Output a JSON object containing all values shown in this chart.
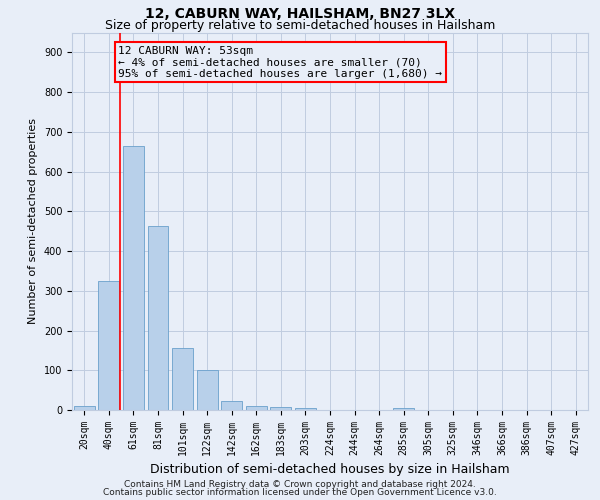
{
  "title1": "12, CABURN WAY, HAILSHAM, BN27 3LX",
  "title2": "Size of property relative to semi-detached houses in Hailsham",
  "xlabel": "Distribution of semi-detached houses by size in Hailsham",
  "ylabel": "Number of semi-detached properties",
  "bar_labels": [
    "20sqm",
    "40sqm",
    "61sqm",
    "81sqm",
    "101sqm",
    "122sqm",
    "142sqm",
    "162sqm",
    "183sqm",
    "203sqm",
    "224sqm",
    "244sqm",
    "264sqm",
    "285sqm",
    "305sqm",
    "325sqm",
    "346sqm",
    "366sqm",
    "386sqm",
    "407sqm",
    "427sqm"
  ],
  "bar_values": [
    10,
    325,
    665,
    462,
    155,
    100,
    22,
    10,
    7,
    4,
    0,
    0,
    0,
    5,
    0,
    0,
    0,
    0,
    0,
    0,
    0
  ],
  "bar_color": "#b8d0ea",
  "bar_edge_color": "#6aa0cc",
  "ylim": [
    0,
    950
  ],
  "yticks": [
    0,
    100,
    200,
    300,
    400,
    500,
    600,
    700,
    800,
    900
  ],
  "red_line_x": 1.45,
  "annotation_line1": "12 CABURN WAY: 53sqm",
  "annotation_line2": "← 4% of semi-detached houses are smaller (70)",
  "annotation_line3": "95% of semi-detached houses are larger (1,680) →",
  "footnote1": "Contains HM Land Registry data © Crown copyright and database right 2024.",
  "footnote2": "Contains public sector information licensed under the Open Government Licence v3.0.",
  "background_color": "#e8eef8",
  "plot_bg_color": "#e8eef8",
  "grid_color": "#c0cce0",
  "title1_fontsize": 10,
  "title2_fontsize": 9,
  "xlabel_fontsize": 9,
  "ylabel_fontsize": 8,
  "tick_fontsize": 7,
  "annotation_fontsize": 8,
  "footnote_fontsize": 6.5
}
